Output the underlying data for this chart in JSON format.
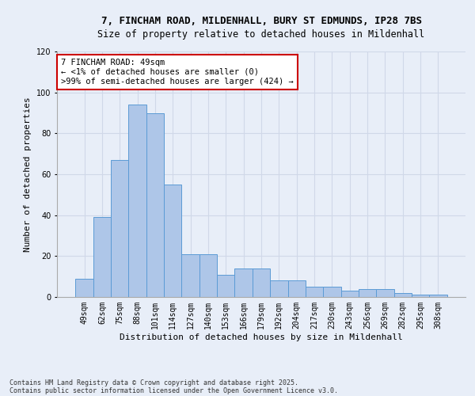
{
  "title_line1": "7, FINCHAM ROAD, MILDENHALL, BURY ST EDMUNDS, IP28 7BS",
  "title_line2": "Size of property relative to detached houses in Mildenhall",
  "xlabel": "Distribution of detached houses by size in Mildenhall",
  "ylabel": "Number of detached properties",
  "categories": [
    "49sqm",
    "62sqm",
    "75sqm",
    "88sqm",
    "101sqm",
    "114sqm",
    "127sqm",
    "140sqm",
    "153sqm",
    "166sqm",
    "179sqm",
    "192sqm",
    "204sqm",
    "217sqm",
    "230sqm",
    "243sqm",
    "256sqm",
    "269sqm",
    "282sqm",
    "295sqm",
    "308sqm"
  ],
  "bar_values": [
    9,
    39,
    67,
    94,
    90,
    55,
    21,
    21,
    11,
    14,
    14,
    8,
    8,
    5,
    5,
    3,
    4,
    4,
    2,
    1,
    1
  ],
  "bar_color": "#aec6e8",
  "bar_edge_color": "#5b9bd5",
  "annotation_text": "7 FINCHAM ROAD: 49sqm\n← <1% of detached houses are smaller (0)\n>99% of semi-detached houses are larger (424) →",
  "annotation_box_color": "#ffffff",
  "annotation_box_edge": "#cc0000",
  "ylim": [
    0,
    120
  ],
  "yticks": [
    0,
    20,
    40,
    60,
    80,
    100,
    120
  ],
  "grid_color": "#d0d8e8",
  "background_color": "#e8eef8",
  "footer_line1": "Contains HM Land Registry data © Crown copyright and database right 2025.",
  "footer_line2": "Contains public sector information licensed under the Open Government Licence v3.0.",
  "title_fontsize": 9,
  "subtitle_fontsize": 8.5,
  "axis_label_fontsize": 8,
  "tick_fontsize": 7,
  "annotation_fontsize": 7.5,
  "footer_fontsize": 6
}
